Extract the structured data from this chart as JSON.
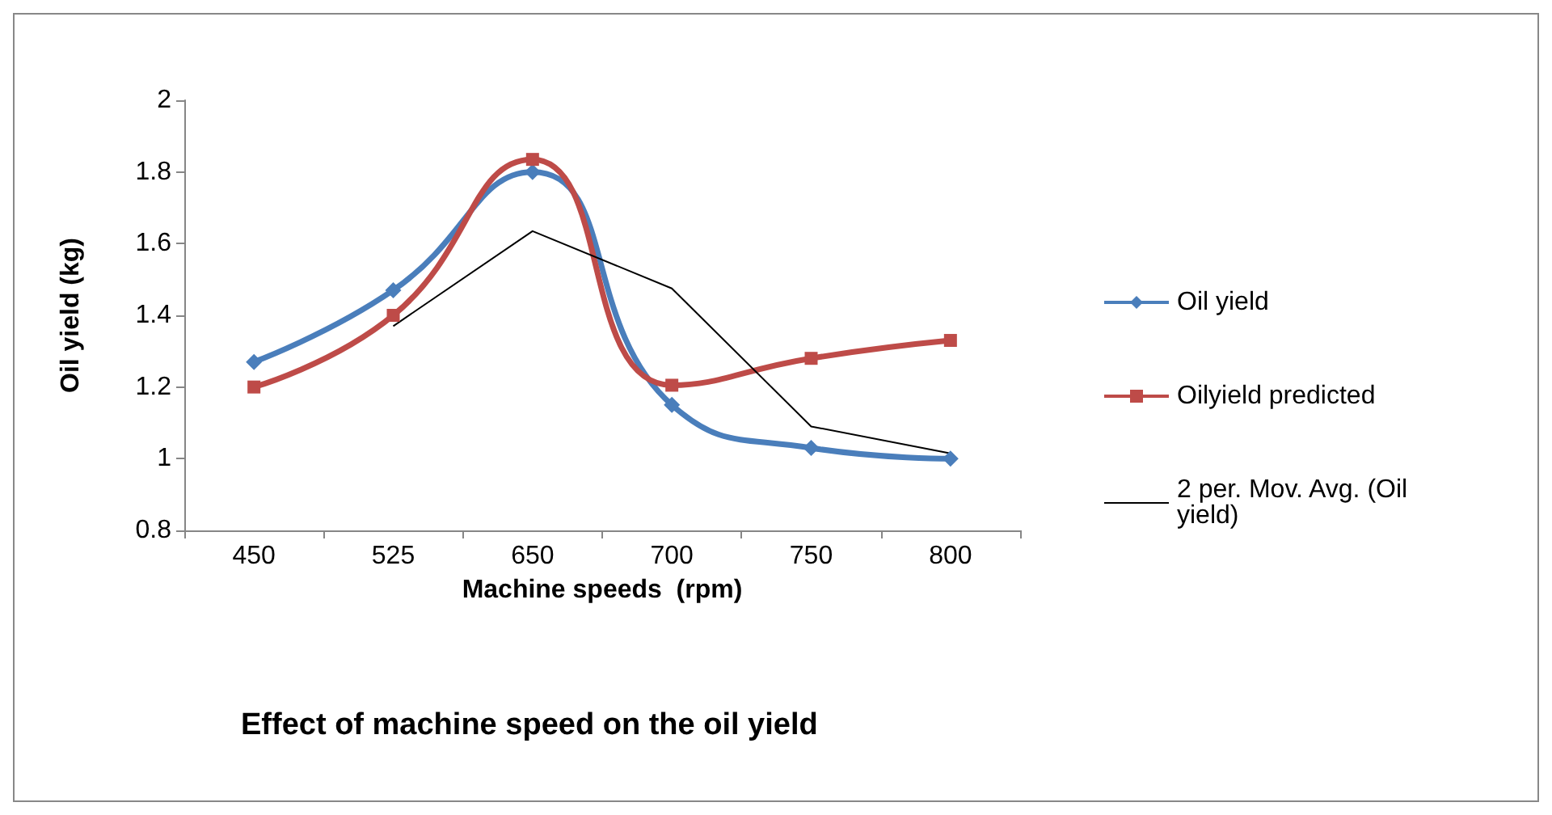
{
  "chart_data": {
    "type": "line",
    "title": "Effect of machine speed on the oil yield",
    "xlabel": "Machine speeds  (rpm)",
    "ylabel": "Oil yield (kg)",
    "categories": [
      "450",
      "525",
      "650",
      "700",
      "750",
      "800"
    ],
    "series": [
      {
        "name": "Oil yield",
        "color": "#4a7ebb",
        "marker": "diamond",
        "values": [
          1.27,
          1.47,
          1.8,
          1.15,
          1.03,
          1.0
        ]
      },
      {
        "name": "Oilyield predicted",
        "color": "#be4b48",
        "marker": "square",
        "values": [
          1.2,
          1.4,
          1.835,
          1.205,
          1.28,
          1.33
        ]
      },
      {
        "name": "2 per. Mov. Avg. (Oil yield)",
        "color": "#000000",
        "marker": "none",
        "values": [
          null,
          1.37,
          1.635,
          1.475,
          1.09,
          1.015
        ]
      }
    ],
    "ylim": [
      0.8,
      2
    ],
    "yticks": [
      0.8,
      1,
      1.2,
      1.4,
      1.6,
      1.8,
      2
    ],
    "grid": false,
    "legend": "right"
  }
}
